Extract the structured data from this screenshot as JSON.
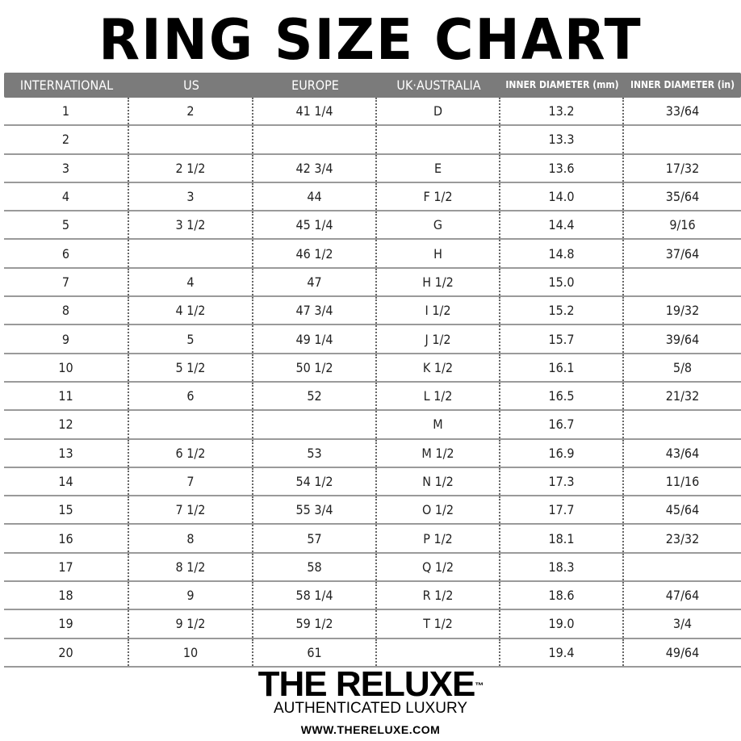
{
  "title": "RING SIZE CHART",
  "header": {
    "columns": [
      "INTERNATIONAL",
      "US",
      "EUROPE",
      "UK·AUSTRALIA",
      "INNER DIAMETER (mm)",
      "INNER DIAMETER (in)"
    ]
  },
  "rows": [
    [
      "1",
      "2",
      "41 1/4",
      "D",
      "13.2",
      "33/64"
    ],
    [
      "2",
      "",
      "",
      "",
      "13.3",
      ""
    ],
    [
      "3",
      "2 1/2",
      "42 3/4",
      "E",
      "13.6",
      "17/32"
    ],
    [
      "4",
      "3",
      "44",
      "F 1/2",
      "14.0",
      "35/64"
    ],
    [
      "5",
      "3 1/2",
      "45 1/4",
      "G",
      "14.4",
      "9/16"
    ],
    [
      "6",
      "",
      "46 1/2",
      "H",
      "14.8",
      "37/64"
    ],
    [
      "7",
      "4",
      "47",
      "H 1/2",
      "15.0",
      ""
    ],
    [
      "8",
      "4 1/2",
      "47 3/4",
      "I 1/2",
      "15.2",
      "19/32"
    ],
    [
      "9",
      "5",
      "49 1/4",
      "J 1/2",
      "15.7",
      "39/64"
    ],
    [
      "10",
      "5 1/2",
      "50 1/2",
      "K 1/2",
      "16.1",
      "5/8"
    ],
    [
      "11",
      "6",
      "52",
      "L 1/2",
      "16.5",
      "21/32"
    ],
    [
      "12",
      "",
      "",
      "M",
      "16.7",
      ""
    ],
    [
      "13",
      "6 1/2",
      "53",
      "M 1/2",
      "16.9",
      "43/64"
    ],
    [
      "14",
      "7",
      "54 1/2",
      "N 1/2",
      "17.3",
      "11/16"
    ],
    [
      "15",
      "7 1/2",
      "55 3/4",
      "O 1/2",
      "17.7",
      "45/64"
    ],
    [
      "16",
      "8",
      "57",
      "P 1/2",
      "18.1",
      "23/32"
    ],
    [
      "17",
      "8 1/2",
      "58",
      "Q 1/2",
      "18.3",
      ""
    ],
    [
      "18",
      "9",
      "58 1/4",
      "R 1/2",
      "18.6",
      "47/64"
    ],
    [
      "19",
      "9 1/2",
      "59 1/2",
      "T 1/2",
      "19.0",
      "3/4"
    ],
    [
      "20",
      "10",
      "61",
      "",
      "19.4",
      "49/64"
    ]
  ],
  "footer": {
    "brand": "THE RELUXE",
    "trademark": "™",
    "tagline": "AUTHENTICATED LUXURY",
    "url": "WWW.THERELUXE.COM"
  },
  "colors": {
    "header_bg": "#7b7b7b",
    "row_line": "#9a9a9a"
  }
}
